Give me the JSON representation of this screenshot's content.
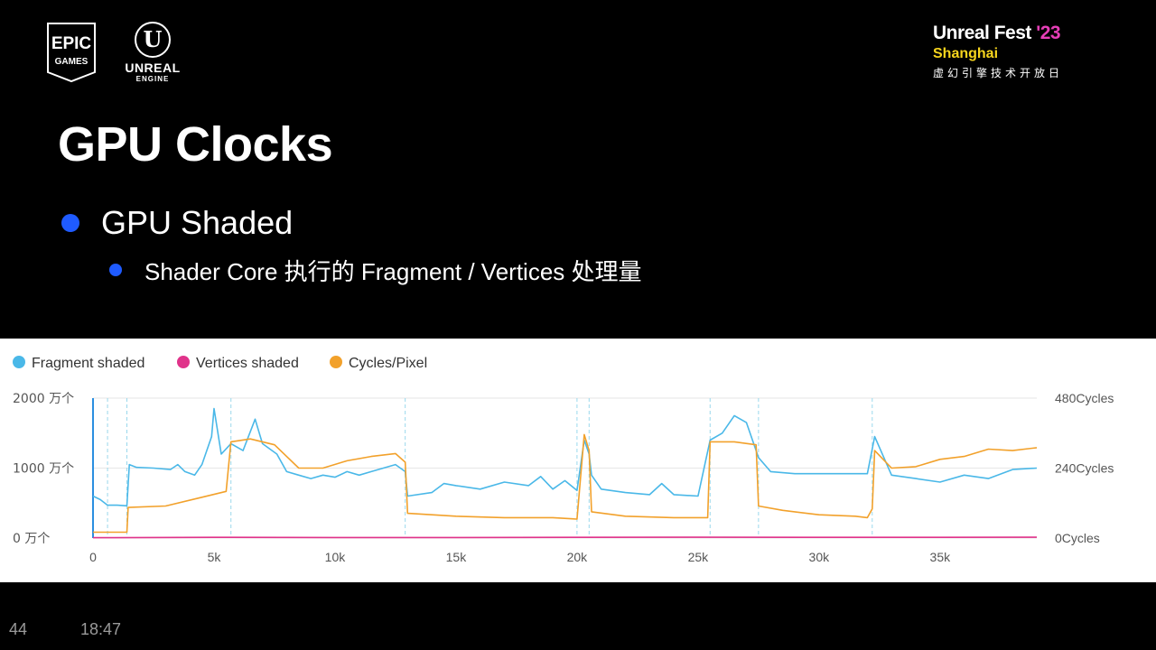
{
  "header": {
    "epic_logo_text_top": "EPIC",
    "epic_logo_text_bottom": "GAMES",
    "unreal_logo_mark": "U",
    "unreal_logo_word": "UNREAL",
    "unreal_logo_sub": "ENGINE",
    "fest_name": "Unreal Fest ",
    "fest_year": "'23",
    "fest_city": "Shanghai",
    "fest_subtitle": "虚幻引擎技术开放日"
  },
  "slide": {
    "title": "GPU Clocks",
    "bullet1": "GPU Shaded",
    "bullet2": "Shader Core 执行的 Fragment / Vertices 处理量"
  },
  "footer": {
    "slide_number": "44",
    "time": "18:47"
  },
  "colors": {
    "fragment": "#4ab8e8",
    "vertices": "#e0338a",
    "cycles": "#f2a12b",
    "bullet": "#1f5bff",
    "marker": "#9ad8ec"
  },
  "chart_data": {
    "type": "line",
    "legend": [
      "Fragment shaded",
      "Vertices shaded",
      "Cycles/Pixel"
    ],
    "legend_position": "top-left",
    "x_ticks": [
      0,
      5000,
      10000,
      15000,
      20000,
      25000,
      30000,
      35000
    ],
    "x_tick_labels": [
      "0",
      "5k",
      "10k",
      "15k",
      "20k",
      "25k",
      "30k",
      "35k"
    ],
    "xlim": [
      0,
      39000
    ],
    "y_left_ticks": [
      0,
      1000,
      2000
    ],
    "y_left_tick_labels": [
      "0 万个",
      "1000 万个",
      "2000 万个"
    ],
    "y_left_lim": [
      0,
      2000
    ],
    "y_right_ticks": [
      0,
      240,
      480
    ],
    "y_right_tick_labels": [
      "0Cycles",
      "240Cycles",
      "480Cycles"
    ],
    "y_right_lim": [
      0,
      480
    ],
    "marker_lines_x": [
      600,
      1400,
      5700,
      12900,
      20000,
      20500,
      25500,
      27500,
      32200
    ],
    "series": [
      {
        "name": "Fragment shaded",
        "axis": "left",
        "points": [
          [
            0,
            600
          ],
          [
            300,
            550
          ],
          [
            600,
            470
          ],
          [
            1000,
            470
          ],
          [
            1400,
            460
          ],
          [
            1500,
            1050
          ],
          [
            1800,
            1010
          ],
          [
            2500,
            1000
          ],
          [
            3200,
            980
          ],
          [
            3500,
            1050
          ],
          [
            3800,
            950
          ],
          [
            4200,
            900
          ],
          [
            4500,
            1050
          ],
          [
            4900,
            1450
          ],
          [
            5000,
            1850
          ],
          [
            5300,
            1200
          ],
          [
            5700,
            1350
          ],
          [
            6200,
            1250
          ],
          [
            6700,
            1700
          ],
          [
            7000,
            1350
          ],
          [
            7600,
            1200
          ],
          [
            8000,
            950
          ],
          [
            8500,
            900
          ],
          [
            9000,
            850
          ],
          [
            9500,
            900
          ],
          [
            10000,
            870
          ],
          [
            10500,
            950
          ],
          [
            11000,
            900
          ],
          [
            11500,
            950
          ],
          [
            12000,
            1000
          ],
          [
            12500,
            1050
          ],
          [
            12900,
            950
          ],
          [
            13000,
            600
          ],
          [
            14000,
            650
          ],
          [
            14500,
            780
          ],
          [
            15000,
            750
          ],
          [
            16000,
            700
          ],
          [
            17000,
            800
          ],
          [
            18000,
            750
          ],
          [
            18500,
            880
          ],
          [
            19000,
            700
          ],
          [
            19500,
            820
          ],
          [
            20000,
            680
          ],
          [
            20300,
            1400
          ],
          [
            20500,
            1200
          ],
          [
            20600,
            900
          ],
          [
            21000,
            700
          ],
          [
            22000,
            650
          ],
          [
            23000,
            620
          ],
          [
            23500,
            780
          ],
          [
            24000,
            620
          ],
          [
            25000,
            600
          ],
          [
            25500,
            1400
          ],
          [
            26000,
            1500
          ],
          [
            26500,
            1750
          ],
          [
            27000,
            1650
          ],
          [
            27500,
            1150
          ],
          [
            28000,
            950
          ],
          [
            29000,
            920
          ],
          [
            30000,
            920
          ],
          [
            31000,
            920
          ],
          [
            32000,
            920
          ],
          [
            32300,
            1450
          ],
          [
            33000,
            900
          ],
          [
            34000,
            850
          ],
          [
            35000,
            800
          ],
          [
            36000,
            900
          ],
          [
            37000,
            850
          ],
          [
            38000,
            980
          ],
          [
            39000,
            1000
          ]
        ]
      },
      {
        "name": "Vertices shaded",
        "axis": "left",
        "points": [
          [
            0,
            5
          ],
          [
            5000,
            10
          ],
          [
            10000,
            8
          ],
          [
            15000,
            8
          ],
          [
            20000,
            10
          ],
          [
            25000,
            12
          ],
          [
            30000,
            10
          ],
          [
            35000,
            10
          ],
          [
            39000,
            12
          ]
        ]
      },
      {
        "name": "Cycles/Pixel",
        "axis": "right",
        "points": [
          [
            0,
            20
          ],
          [
            1400,
            20
          ],
          [
            1450,
            105
          ],
          [
            3000,
            110
          ],
          [
            4500,
            140
          ],
          [
            5500,
            160
          ],
          [
            5700,
            330
          ],
          [
            6500,
            340
          ],
          [
            7500,
            320
          ],
          [
            8500,
            240
          ],
          [
            9500,
            240
          ],
          [
            10500,
            265
          ],
          [
            11500,
            280
          ],
          [
            12500,
            290
          ],
          [
            12900,
            260
          ],
          [
            13000,
            85
          ],
          [
            15000,
            75
          ],
          [
            17000,
            70
          ],
          [
            19000,
            70
          ],
          [
            20000,
            65
          ],
          [
            20300,
            355
          ],
          [
            20500,
            300
          ],
          [
            20600,
            90
          ],
          [
            22000,
            75
          ],
          [
            24000,
            70
          ],
          [
            25400,
            70
          ],
          [
            25500,
            330
          ],
          [
            26500,
            330
          ],
          [
            27400,
            320
          ],
          [
            27500,
            110
          ],
          [
            28500,
            95
          ],
          [
            30000,
            80
          ],
          [
            31500,
            75
          ],
          [
            32000,
            70
          ],
          [
            32200,
            100
          ],
          [
            32300,
            300
          ],
          [
            33000,
            240
          ],
          [
            34000,
            245
          ],
          [
            35000,
            270
          ],
          [
            36000,
            280
          ],
          [
            37000,
            305
          ],
          [
            38000,
            300
          ],
          [
            39000,
            310
          ]
        ]
      }
    ]
  }
}
